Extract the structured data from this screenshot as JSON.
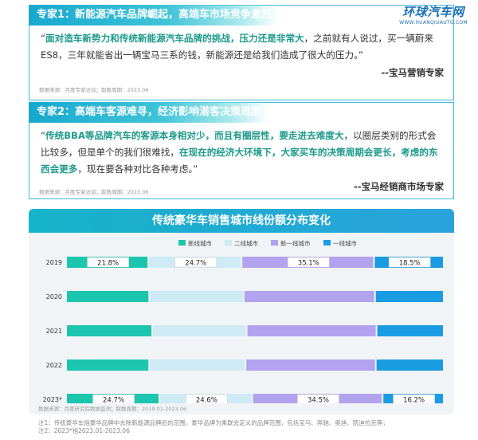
{
  "logo": {
    "main": "环球汽车网",
    "sub": "WWW.HUANQIUAUTO.COM"
  },
  "expert1": {
    "heading": "专家1：新能源汽车品牌崛起，高端车市场竞争激烈",
    "q_open": "“",
    "q_hl": "面对造车新势力和传统新能源汽车品牌的挑战，压力还是非常大",
    "q_rest": "，之前就有人说过，买一辆蔚来ES8，三年就能省出一辆宝马三系的钱，新能源还是给我们造成了很大的压力。”",
    "signature": "--宝马营销专家",
    "source": "数据来源：月度专家访谈；取数周期：2023.06"
  },
  "expert2": {
    "heading": "专家2：高端车客源难寻，经济影响潜客决策周期",
    "q_open": "“",
    "q_hl1": "传统BBA等品牌汽车的客源本身相对少，而且有圈层性，要走进去难度大",
    "q_mid": "，以圈层类别的形式会比较多，但是单个的我们很难找，",
    "q_hl2": "在现在的经济大环境下，大家买车的决策周期会更长，考虑的东西会更多",
    "q_end": "，现在要各种对比各种考虑。”",
    "signature": "--宝马经销商市场专家",
    "source": "数据来源：月度专家访谈；取数周期：2023.06"
  },
  "chart_title": "传统豪华车销售城市线份额分布变化",
  "chart_source": "数据来源：月度研究院数据监测；取数周期：2019.01-2023.06",
  "notes": [
    "注1：传统豪华车指豪华品牌中去除新能源品牌后的范围，豪华品牌为乘联会定义的品牌范围，包括宝马、奔驰、奥迪、凯迪拉克等；",
    "注2：2023*指2023.01-2023.06"
  ],
  "chart_data": {
    "type": "bar",
    "stacked": true,
    "orientation": "horizontal",
    "categories": [
      "2019",
      "2020",
      "2021",
      "2022",
      "2023*"
    ],
    "series": [
      {
        "name": "新线城市",
        "color": "#1cc6ae",
        "values": [
          21.8,
          22.0,
          22.8,
          22.0,
          24.7
        ]
      },
      {
        "name": "二线城市",
        "color": "#cdeaf5",
        "values": [
          24.7,
          25.0,
          25.0,
          25.5,
          24.6
        ]
      },
      {
        "name": "新一线城市",
        "color": "#b3a2ee",
        "values": [
          35.1,
          34.8,
          34.4,
          34.5,
          34.5
        ]
      },
      {
        "name": "一线城市",
        "color": "#1a9ce3",
        "values": [
          18.5,
          18.2,
          17.8,
          18.0,
          16.2
        ]
      }
    ],
    "labeled_categories": [
      "2019",
      "2023*"
    ],
    "legend": "top",
    "xlim": [
      0,
      100
    ],
    "grid": false
  }
}
